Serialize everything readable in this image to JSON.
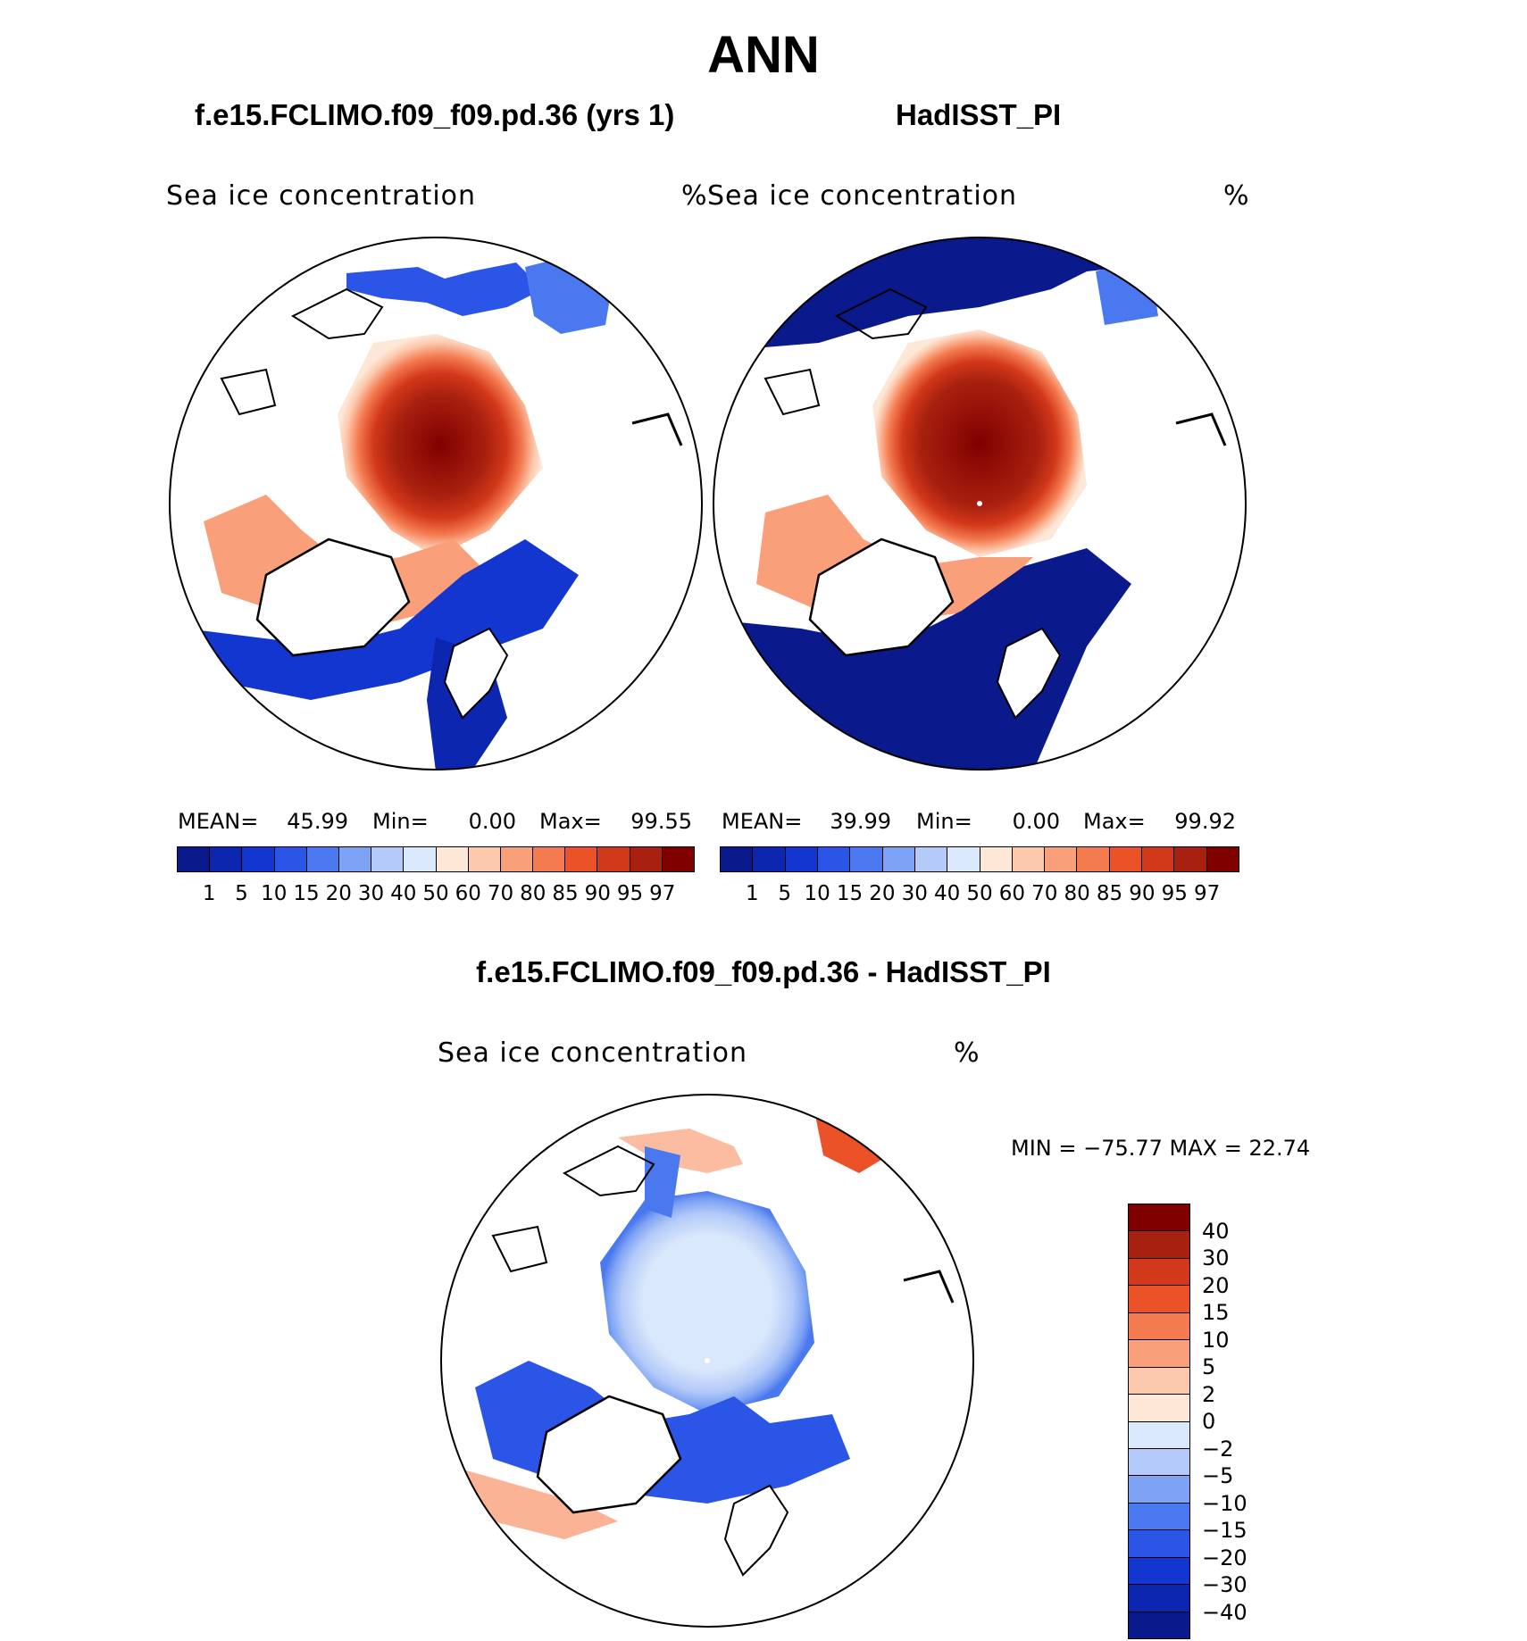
{
  "page_title": "ANN",
  "panels": [
    {
      "id": "model",
      "subtitle": "f.e15.FCLIMO.f09_f09.pd.36 (yrs 1)",
      "variable": "Sea ice concentration",
      "units": "%",
      "mean_label": "MEAN=",
      "mean": "45.99",
      "min_label": "Min=",
      "min": "0.00",
      "max_label": "Max=",
      "max": "99.55"
    },
    {
      "id": "obs",
      "subtitle": "HadISST_PI",
      "variable": "Sea ice concentration",
      "units": "%",
      "mean_label": "MEAN=",
      "mean": "39.99",
      "min_label": "Min=",
      "min": "0.00",
      "max_label": "Max=",
      "max": "99.92"
    }
  ],
  "colorbar_levels": [
    "1",
    "5",
    "10",
    "15",
    "20",
    "30",
    "40",
    "50",
    "60",
    "70",
    "80",
    "85",
    "90",
    "95",
    "97"
  ],
  "colorbar_colors": [
    "#0a1a8c",
    "#0d26b0",
    "#1336d1",
    "#2a55e6",
    "#4a78ee",
    "#7ea3f4",
    "#b3caf8",
    "#dae8fb",
    "#fde8d8",
    "#fcc9ad",
    "#f9a07a",
    "#f47a50",
    "#eb5227",
    "#d2381a",
    "#a8200f",
    "#800000"
  ],
  "difference": {
    "title": "f.e15.FCLIMO.f09_f09.pd.36 - HadISST_PI",
    "variable": "Sea ice concentration",
    "units": "%",
    "minmax_label": "MIN = −75.77  MAX =   22.74",
    "levels": [
      "40",
      "30",
      "20",
      "15",
      "10",
      "5",
      "2",
      "0",
      "−2",
      "−5",
      "−10",
      "−15",
      "−20",
      "−30",
      "−40"
    ],
    "colors": [
      "#800000",
      "#a8200f",
      "#d2381a",
      "#eb5227",
      "#f47a50",
      "#f9a07a",
      "#fcc9ad",
      "#fde8d8",
      "#dae8fb",
      "#b3caf8",
      "#7ea3f4",
      "#4a78ee",
      "#2a55e6",
      "#1336d1",
      "#0d26b0",
      "#0a1a8c"
    ]
  }
}
